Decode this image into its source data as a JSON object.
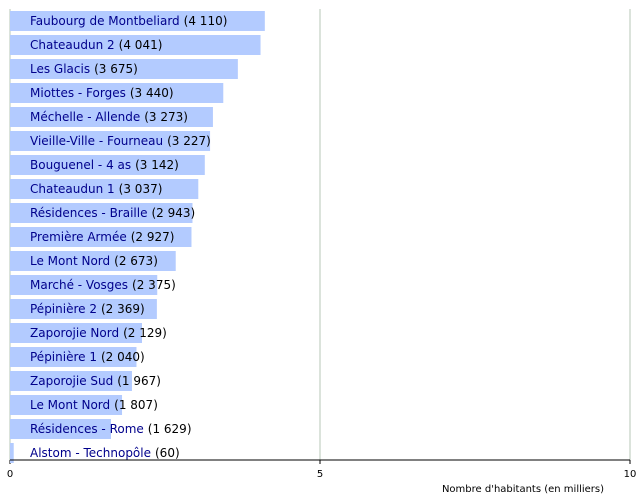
{
  "chart_data": {
    "type": "bar",
    "orientation": "horizontal",
    "x_label": "Nombre d'habitants (en milliers)",
    "categories": [
      "Faubourg de Montbeliard",
      "Chateaudun 2",
      "Les Glacis",
      "Miottes - Forges",
      "Méchelle - Allende",
      "Vieille-Ville - Fourneau",
      "Bouguenel - 4 as",
      "Chateaudun 1",
      "Résidences - Braille",
      "Première Armée",
      "Le Mont Nord",
      "Marché - Vosges",
      "Pépinière 2",
      "Zaporojie Nord",
      "Pépinière 1",
      "Zaporojie Sud",
      "Le Mont Nord",
      "Résidences - Rome",
      "Alstom - Technopôle"
    ],
    "values": [
      4.11,
      4.041,
      3.675,
      3.44,
      3.273,
      3.227,
      3.142,
      3.037,
      2.943,
      2.927,
      2.673,
      2.375,
      2.369,
      2.129,
      2.04,
      1.967,
      1.807,
      1.629,
      0.06
    ],
    "value_labels": [
      "(4 110)",
      "(4 041)",
      "(3 675)",
      "(3 440)",
      "(3 273)",
      "(3 227)",
      "(3 142)",
      "(3 037)",
      "(2 943)",
      "(2 927)",
      "(2 673)",
      "(2 375)",
      "(2 369)",
      "(2 129)",
      "(2 040)",
      "(1 967)",
      "(1 807)",
      "(1 629)",
      "(60)"
    ],
    "color": "#b3cbff",
    "label_color": "#00008b",
    "xlim": [
      0,
      10
    ],
    "xticks": [
      0,
      5,
      10
    ],
    "grid": true
  }
}
